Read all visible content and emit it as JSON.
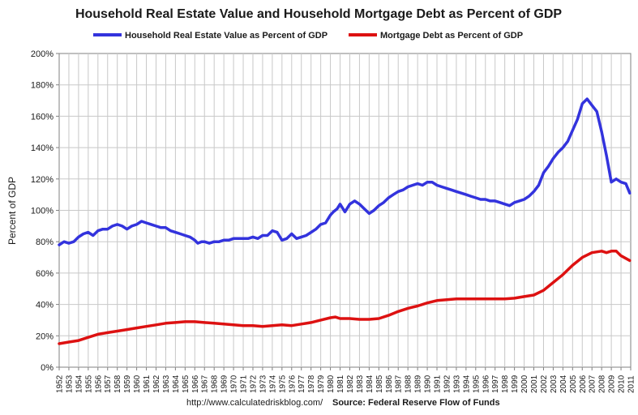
{
  "chart_data": {
    "type": "line",
    "title": "Household Real Estate Value and Household Mortgage Debt as Percent of GDP",
    "xlabel": "",
    "ylabel": "Percent of GDP",
    "xlim": [
      1952,
      2011
    ],
    "ylim": [
      0,
      200
    ],
    "y_ticks": [
      0,
      20,
      40,
      60,
      80,
      100,
      120,
      140,
      160,
      180,
      200
    ],
    "y_tick_labels": [
      "0%",
      "20%",
      "40%",
      "60%",
      "80%",
      "100%",
      "120%",
      "140%",
      "160%",
      "180%",
      "200%"
    ],
    "x_tick_labels": [
      "1952",
      "1953",
      "1954",
      "1955",
      "1956",
      "1957",
      "1958",
      "1959",
      "1960",
      "1961",
      "1962",
      "1963",
      "1964",
      "1965",
      "1966",
      "1967",
      "1968",
      "1969",
      "1970",
      "1971",
      "1972",
      "1973",
      "1974",
      "1975",
      "1976",
      "1977",
      "1978",
      "1979",
      "1980",
      "1981",
      "1982",
      "1983",
      "1984",
      "1985",
      "1986",
      "1987",
      "1988",
      "1989",
      "1990",
      "1991",
      "1992",
      "1993",
      "1994",
      "1995",
      "1996",
      "1997",
      "1998",
      "1999",
      "2000",
      "2001",
      "2002",
      "2003",
      "2004",
      "2005",
      "2006",
      "2007",
      "2008",
      "2009",
      "2010",
      "2011"
    ],
    "grid": true,
    "legend_position": "top",
    "series": [
      {
        "name": "Household Real Estate Value as Percent of GDP",
        "color": "#3333dd",
        "x": [
          1952,
          1952.5,
          1953,
          1953.5,
          1954,
          1954.5,
          1955,
          1955.5,
          1956,
          1956.5,
          1957,
          1957.5,
          1958,
          1958.5,
          1959,
          1959.5,
          1960,
          1960.5,
          1961,
          1961.5,
          1962,
          1962.5,
          1963,
          1963.5,
          1964,
          1964.5,
          1965,
          1965.5,
          1966,
          1966.3,
          1966.7,
          1967,
          1967.5,
          1968,
          1968.5,
          1969,
          1969.5,
          1970,
          1970.5,
          1971,
          1971.5,
          1972,
          1972.5,
          1973,
          1973.5,
          1974,
          1974.5,
          1975,
          1975.5,
          1976,
          1976.5,
          1977,
          1977.5,
          1978,
          1978.5,
          1979,
          1979.5,
          1980,
          1980.3,
          1980.7,
          1981,
          1981.5,
          1982,
          1982.5,
          1983,
          1983.5,
          1984,
          1984.5,
          1985,
          1985.5,
          1986,
          1986.5,
          1987,
          1987.5,
          1988,
          1988.5,
          1989,
          1989.5,
          1990,
          1990.5,
          1991,
          1991.5,
          1992,
          1992.5,
          1993,
          1993.5,
          1994,
          1994.5,
          1995,
          1995.5,
          1996,
          1996.5,
          1997,
          1997.5,
          1998,
          1998.5,
          1999,
          1999.5,
          2000,
          2000.5,
          2001,
          2001.5,
          2002,
          2002.5,
          2003,
          2003.5,
          2004,
          2004.5,
          2005,
          2005.5,
          2006,
          2006.5,
          2007,
          2007.5,
          2008,
          2008.5,
          2009,
          2009.5,
          2010,
          2010.5,
          2010.9
        ],
        "values": [
          78,
          80,
          79,
          80,
          83,
          85,
          86,
          84,
          87,
          88,
          88,
          90,
          91,
          90,
          88,
          90,
          91,
          93,
          92,
          91,
          90,
          89,
          89,
          87,
          86,
          85,
          84,
          83,
          81,
          79,
          80,
          80,
          79,
          80,
          80,
          81,
          81,
          82,
          82,
          82,
          82,
          83,
          82,
          84,
          84,
          87,
          86,
          81,
          82,
          85,
          82,
          83,
          84,
          86,
          88,
          91,
          92,
          97,
          99,
          101,
          104,
          99,
          104,
          106,
          104,
          101,
          98,
          100,
          103,
          105,
          108,
          110,
          112,
          113,
          115,
          116,
          117,
          116,
          118,
          118,
          116,
          115,
          114,
          113,
          112,
          111,
          110,
          109,
          108,
          107,
          107,
          106,
          106,
          105,
          104,
          103,
          105,
          106,
          107,
          109,
          112,
          116,
          124,
          128,
          133,
          137,
          140,
          144,
          151,
          158,
          168,
          171,
          167,
          163,
          150,
          135,
          118,
          120,
          118,
          117,
          111
        ]
      },
      {
        "name": "Mortgage Debt as Percent of GDP",
        "color": "#dd1111",
        "x": [
          1952,
          1953,
          1954,
          1955,
          1956,
          1957,
          1958,
          1959,
          1960,
          1961,
          1962,
          1963,
          1964,
          1965,
          1966,
          1967,
          1968,
          1969,
          1970,
          1971,
          1972,
          1973,
          1974,
          1975,
          1976,
          1977,
          1978,
          1979,
          1980,
          1980.5,
          1981,
          1982,
          1983,
          1984,
          1985,
          1986,
          1987,
          1988,
          1989,
          1990,
          1991,
          1992,
          1993,
          1994,
          1995,
          1996,
          1997,
          1998,
          1999,
          2000,
          2001,
          2002,
          2003,
          2004,
          2005,
          2006,
          2007,
          2008,
          2008.5,
          2009,
          2009.5,
          2010,
          2010.9
        ],
        "values": [
          15,
          16,
          17,
          19,
          21,
          22,
          23,
          24,
          25,
          26,
          27,
          28,
          28.5,
          29,
          29,
          28.5,
          28,
          27.5,
          27,
          26.5,
          26.5,
          26,
          26.5,
          27,
          26.5,
          27.5,
          28.5,
          30,
          31.5,
          32,
          31,
          31,
          30.5,
          30.5,
          31,
          33,
          35.5,
          37.5,
          39,
          41,
          42.5,
          43,
          43.5,
          43.5,
          43.5,
          43.5,
          43.5,
          43.5,
          44,
          45,
          46,
          49,
          54,
          59,
          65,
          70,
          73,
          74,
          73,
          74,
          74,
          71,
          68
        ]
      }
    ]
  },
  "footer": {
    "url": "http://www.calculatedriskblog.com/",
    "source": "Source: Federal Reserve Flow of Funds"
  }
}
